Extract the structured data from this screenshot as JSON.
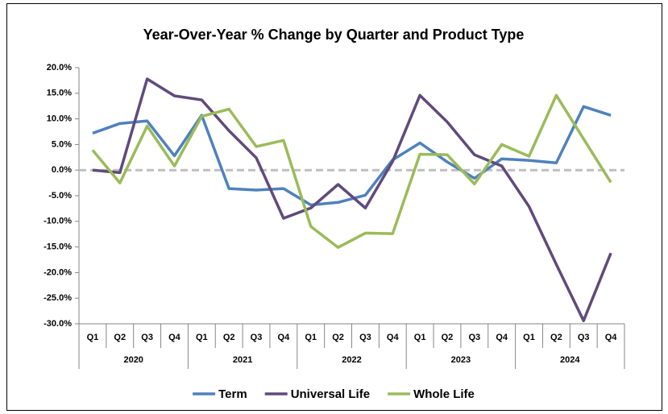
{
  "chart_data": {
    "type": "line",
    "title": "Year-Over-Year % Change by Quarter and Product Type",
    "categories": [
      "Q1",
      "Q2",
      "Q3",
      "Q4",
      "Q1",
      "Q2",
      "Q3",
      "Q4",
      "Q1",
      "Q2",
      "Q3",
      "Q4",
      "Q1",
      "Q2",
      "Q3",
      "Q4",
      "Q1",
      "Q2",
      "Q3",
      "Q4"
    ],
    "x_groups": [
      "2020",
      "2021",
      "2022",
      "2023",
      "2024"
    ],
    "series": [
      {
        "name": "Term",
        "color": "#4f81bd",
        "values": [
          7.2,
          9.1,
          9.6,
          2.8,
          10.7,
          -3.6,
          -3.9,
          -3.6,
          -6.8,
          -6.3,
          -4.9,
          2.0,
          5.3,
          1.6,
          -1.6,
          2.2,
          1.9,
          1.4,
          12.4,
          10.7
        ]
      },
      {
        "name": "Universal Life",
        "color": "#604a7b",
        "values": [
          0.0,
          -0.5,
          17.8,
          14.5,
          13.7,
          7.7,
          2.4,
          -9.4,
          -7.4,
          -2.8,
          -7.4,
          1.7,
          14.6,
          9.4,
          3.0,
          0.8,
          -7.1,
          -18.4,
          -29.4,
          -16.2
        ]
      },
      {
        "name": "Whole Life",
        "color": "#9bbb59",
        "values": [
          3.9,
          -2.5,
          8.6,
          0.8,
          10.5,
          11.9,
          4.6,
          5.8,
          -11.0,
          -15.1,
          -12.3,
          -12.4,
          3.1,
          3.0,
          -2.7,
          5.0,
          2.7,
          14.6,
          6.1,
          -2.4
        ]
      }
    ],
    "ylim": [
      -30,
      20
    ],
    "yticks": [
      {
        "value": -30,
        "label": "-30.0%"
      },
      {
        "value": -25,
        "label": "-25.0%"
      },
      {
        "value": -20,
        "label": "-20.0%"
      },
      {
        "value": -15,
        "label": "-15.0%"
      },
      {
        "value": -10,
        "label": "-10.0%"
      },
      {
        "value": -5,
        "label": "-5.0%"
      },
      {
        "value": 0,
        "label": "0.0%"
      },
      {
        "value": 5,
        "label": "5.0%"
      },
      {
        "value": 10,
        "label": "10.0%"
      },
      {
        "value": 15,
        "label": "15.0%"
      },
      {
        "value": 20,
        "label": "20.0%"
      }
    ],
    "zero_line": true,
    "grid": false,
    "legend": "bottom"
  }
}
